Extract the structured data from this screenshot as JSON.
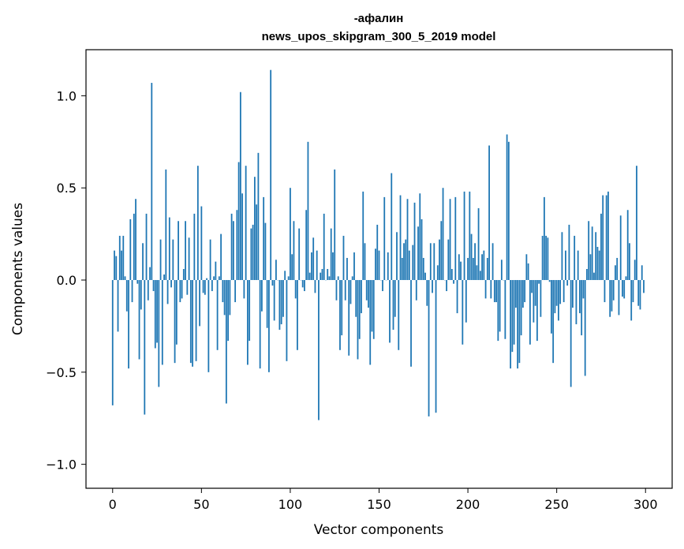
{
  "chart_data": {
    "type": "bar",
    "title": "-афалин",
    "subtitle": "news_upos_skipgram_300_5_2019 model",
    "xlabel": "Vector components",
    "ylabel": "Components values",
    "xlim": [
      -15,
      315
    ],
    "ylim": [
      -1.13,
      1.25
    ],
    "xticks": [
      0,
      50,
      100,
      150,
      200,
      250,
      300
    ],
    "yticks": [
      -1.0,
      -0.5,
      0.0,
      0.5,
      1.0
    ],
    "ytick_labels": [
      "−1.0",
      "−0.5",
      "0.0",
      "0.5",
      "1.0"
    ],
    "bar_color": "#1f77b4",
    "values": [
      -0.68,
      0.16,
      0.13,
      -0.28,
      0.24,
      0.16,
      0.24,
      0.02,
      -0.17,
      -0.48,
      0.33,
      -0.12,
      0.36,
      0.44,
      -0.02,
      -0.43,
      -0.16,
      0.2,
      -0.73,
      0.36,
      -0.11,
      0.07,
      1.07,
      -0.06,
      -0.37,
      -0.34,
      -0.58,
      0.22,
      -0.46,
      0.03,
      0.6,
      -0.13,
      0.34,
      -0.04,
      0.22,
      -0.45,
      -0.35,
      0.32,
      -0.12,
      -0.1,
      0.06,
      0.32,
      -0.08,
      0.23,
      -0.45,
      -0.47,
      0.36,
      -0.44,
      0.62,
      -0.25,
      0.4,
      -0.07,
      -0.08,
      0.01,
      -0.5,
      0.22,
      -0.06,
      0.02,
      0.1,
      -0.38,
      0.02,
      0.25,
      -0.12,
      -0.19,
      -0.67,
      -0.33,
      -0.19,
      0.36,
      0.32,
      -0.12,
      0.38,
      0.64,
      1.02,
      0.47,
      -0.1,
      0.62,
      -0.46,
      -0.33,
      0.28,
      0.3,
      0.56,
      0.41,
      0.69,
      -0.48,
      -0.17,
      0.45,
      0.31,
      -0.26,
      -0.5,
      1.14,
      -0.03,
      -0.22,
      0.11,
      0.0,
      -0.27,
      -0.24,
      -0.2,
      0.05,
      -0.44,
      0.02,
      0.5,
      0.14,
      0.32,
      -0.1,
      -0.38,
      0.28,
      0.0,
      -0.04,
      -0.06,
      0.38,
      0.75,
      0.04,
      0.15,
      0.23,
      -0.07,
      0.16,
      -0.76,
      0.04,
      0.06,
      0.36,
      0.0,
      0.06,
      0.02,
      0.28,
      0.15,
      0.6,
      -0.11,
      0.02,
      -0.38,
      -0.3,
      0.24,
      -0.11,
      0.12,
      -0.41,
      -0.13,
      0.02,
      0.15,
      -0.2,
      -0.43,
      -0.32,
      -0.18,
      0.48,
      0.2,
      -0.11,
      -0.15,
      -0.46,
      -0.28,
      -0.32,
      0.17,
      0.3,
      0.16,
      0.0,
      -0.06,
      0.45,
      0.0,
      0.15,
      -0.34,
      0.58,
      -0.27,
      -0.2,
      0.26,
      -0.38,
      0.46,
      0.12,
      0.2,
      0.22,
      0.44,
      0.16,
      -0.47,
      0.19,
      0.42,
      -0.11,
      0.29,
      0.47,
      0.33,
      0.12,
      0.04,
      -0.14,
      -0.74,
      0.2,
      -0.07,
      0.2,
      -0.72,
      0.08,
      0.22,
      0.32,
      0.5,
      0.0,
      -0.06,
      0.22,
      0.44,
      0.06,
      -0.02,
      0.45,
      -0.18,
      0.14,
      0.1,
      -0.35,
      0.48,
      -0.23,
      0.12,
      0.48,
      0.25,
      0.12,
      0.2,
      0.08,
      0.39,
      0.05,
      0.14,
      0.16,
      -0.1,
      0.12,
      0.73,
      -0.1,
      0.2,
      -0.12,
      -0.12,
      -0.33,
      -0.28,
      0.11,
      0.0,
      -0.32,
      0.79,
      0.75,
      -0.48,
      -0.39,
      -0.35,
      -0.15,
      -0.48,
      -0.45,
      -0.3,
      -0.15,
      -0.12,
      0.14,
      0.09,
      -0.35,
      -0.07,
      -0.23,
      -0.14,
      -0.33,
      -0.02,
      -0.2,
      0.24,
      0.45,
      0.24,
      0.23,
      -0.01,
      -0.29,
      -0.45,
      -0.18,
      -0.14,
      -0.22,
      -0.13,
      0.26,
      -0.12,
      0.16,
      -0.03,
      0.3,
      -0.58,
      -0.15,
      0.24,
      -0.24,
      0.16,
      -0.18,
      -0.3,
      -0.1,
      -0.52,
      0.06,
      0.32,
      0.14,
      0.29,
      0.04,
      0.26,
      0.18,
      0.16,
      0.36,
      0.46,
      -0.12,
      0.46,
      0.48,
      -0.2,
      -0.17,
      -0.11,
      0.08,
      0.12,
      -0.19,
      0.35,
      -0.09,
      -0.1,
      0.02,
      0.38,
      0.2,
      -0.22,
      -0.12,
      0.11,
      0.62,
      -0.14,
      -0.16,
      0.08,
      -0.07
    ]
  }
}
